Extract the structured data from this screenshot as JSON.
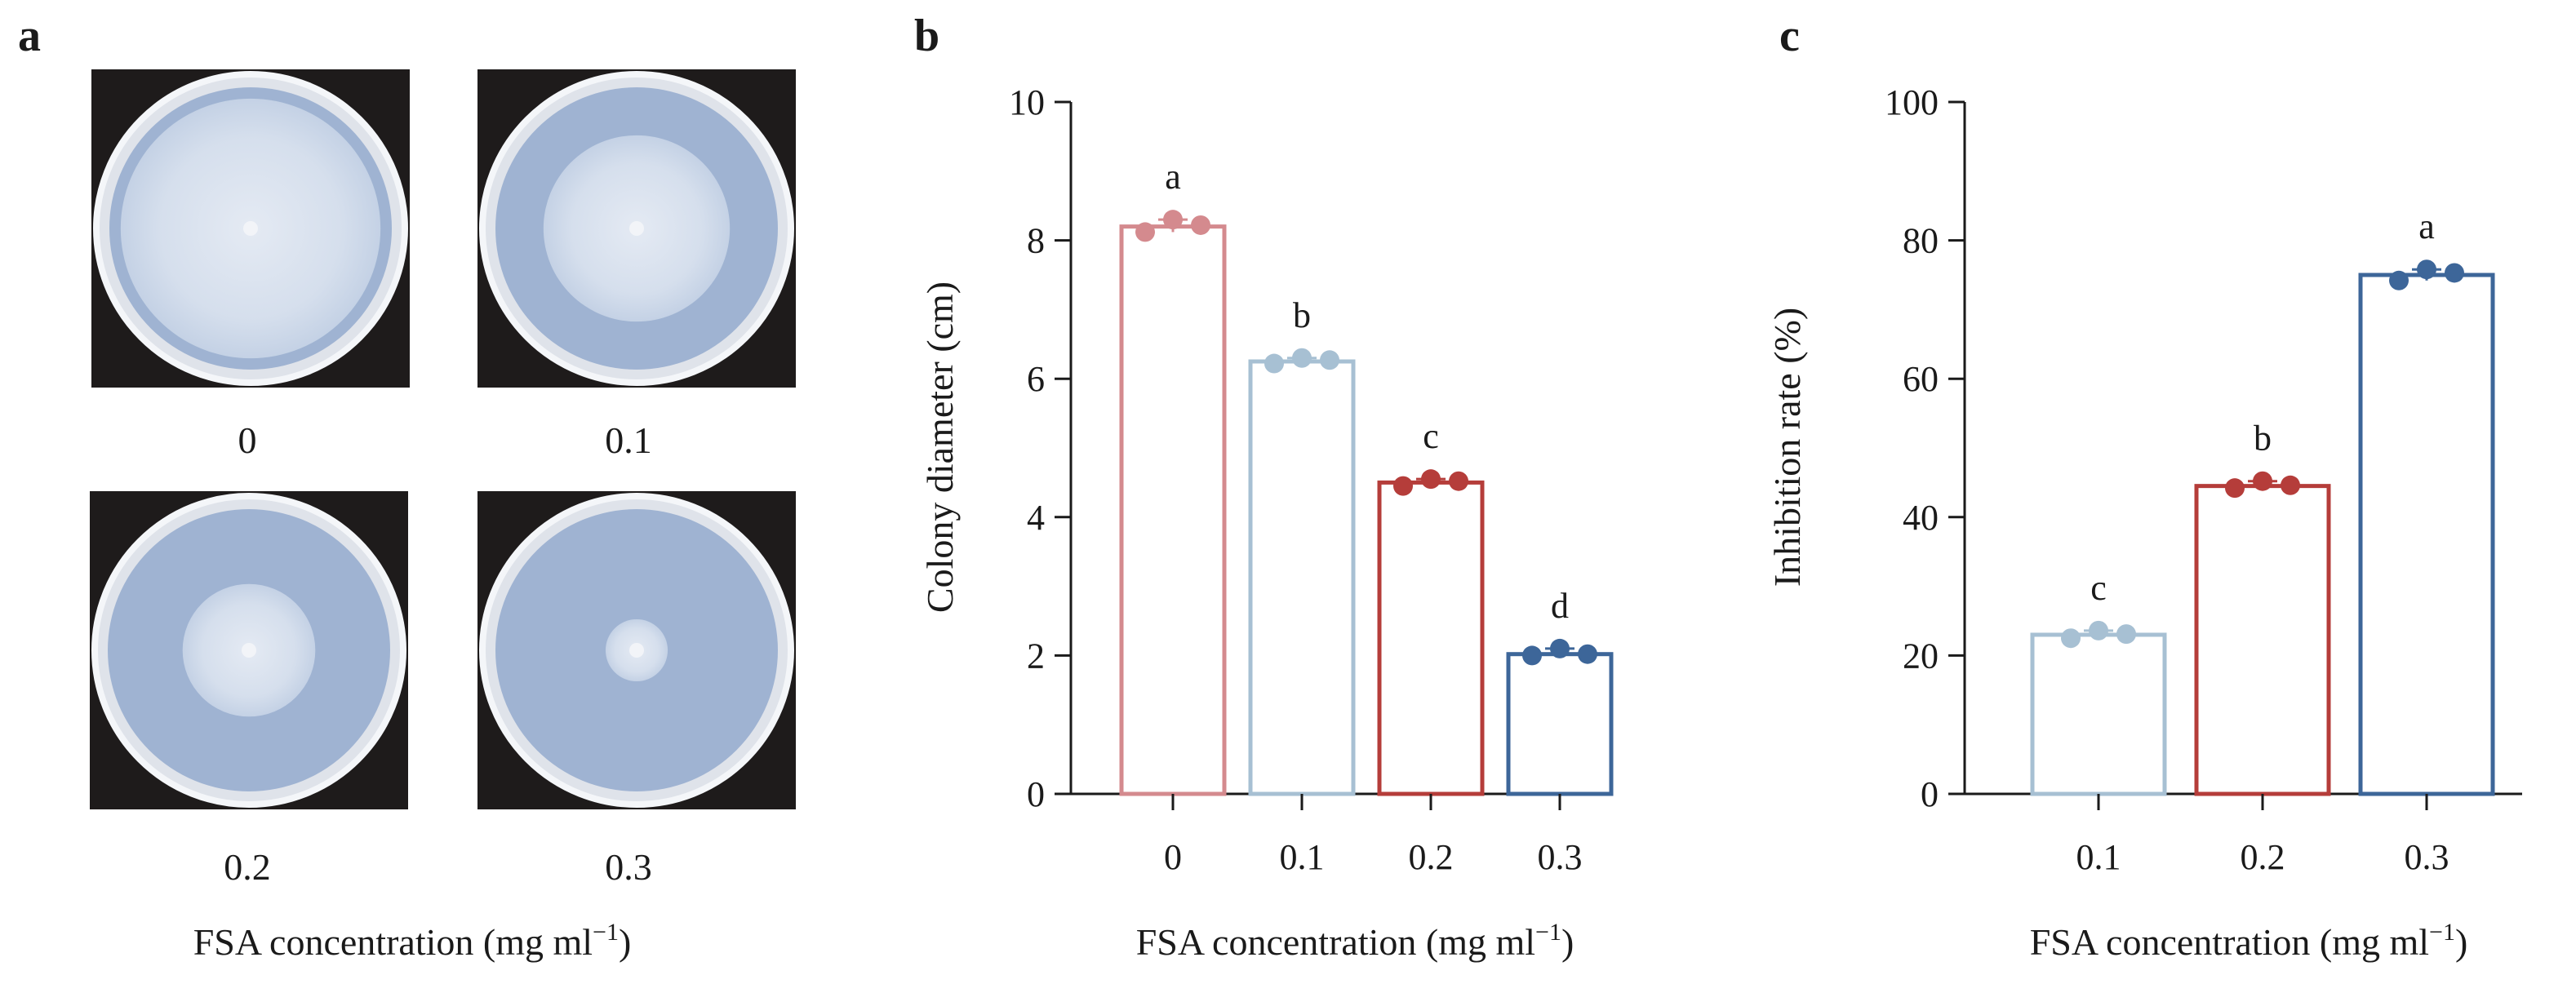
{
  "panels": {
    "a": {
      "letter": "a",
      "plates": [
        {
          "label": "0",
          "colony_fraction": 0.92
        },
        {
          "label": "0.1",
          "colony_fraction": 0.66
        },
        {
          "label": "0.2",
          "colony_fraction": 0.47
        },
        {
          "label": "0.3",
          "colony_fraction": 0.22
        }
      ],
      "xlabel": "FSA concentration (mg ml",
      "xlabel_sup": "−1",
      "xlabel_end": ")"
    },
    "b": {
      "letter": "b"
    },
    "c": {
      "letter": "c"
    }
  },
  "chart_data": [
    {
      "type": "bar",
      "panel": "b",
      "categories": [
        "0",
        "0.1",
        "0.2",
        "0.3"
      ],
      "values": [
        8.2,
        6.25,
        4.5,
        2.02
      ],
      "points": [
        [
          8.12,
          8.3,
          8.22
        ],
        [
          6.22,
          6.3,
          6.27
        ],
        [
          4.45,
          4.55,
          4.52
        ],
        [
          2.0,
          2.1,
          2.02
        ]
      ],
      "significance": [
        "a",
        "b",
        "c",
        "d"
      ],
      "colors": [
        "#d48a8e",
        "#a7c0d3",
        "#b53d3a",
        "#3d6699"
      ],
      "ylabel": "Colony diameter (cm)",
      "xlabel": "FSA concentration (mg ml",
      "xlabel_sup": "−1",
      "xlabel_end": ")",
      "ylim": [
        0,
        10
      ],
      "yticks": [
        "0",
        "2",
        "4",
        "6",
        "8",
        "10"
      ]
    },
    {
      "type": "bar",
      "panel": "c",
      "categories": [
        "0.1",
        "0.2",
        "0.3"
      ],
      "values": [
        23.0,
        44.5,
        75.0
      ],
      "points": [
        [
          22.5,
          23.6,
          23.1
        ],
        [
          44.2,
          45.2,
          44.6
        ],
        [
          74.2,
          75.8,
          75.3
        ]
      ],
      "significance": [
        "c",
        "b",
        "a"
      ],
      "colors": [
        "#a7c0d3",
        "#b53d3a",
        "#3d6699"
      ],
      "ylabel": "Inhibition rate (%)",
      "xlabel": "FSA concentration (mg ml",
      "xlabel_sup": "−1",
      "xlabel_end": ")",
      "ylim": [
        0,
        100
      ],
      "yticks": [
        "0",
        "20",
        "40",
        "60",
        "80",
        "100"
      ]
    }
  ]
}
